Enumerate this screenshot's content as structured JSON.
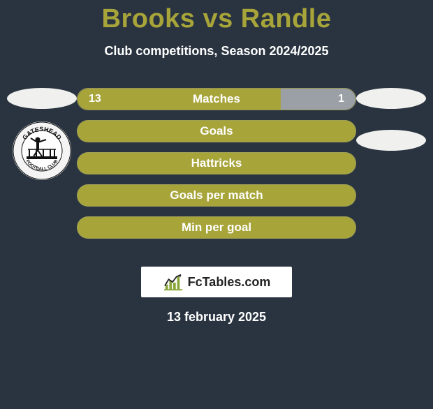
{
  "title": {
    "text": "Brooks vs Randle",
    "color": "#a7a43a"
  },
  "subtitle": "Club competitions, Season 2024/2025",
  "colors": {
    "brand": "#a7a43a",
    "neutral_dim": "#5b6168",
    "pill": "#f0f0ee",
    "bg": "#2a3440"
  },
  "leftPlayer": {
    "club": "GATESHEAD",
    "club_sub": "FOOTBALL CLUB"
  },
  "bars": [
    {
      "label": "Matches",
      "left": {
        "value": "13",
        "width_pct": 73,
        "color": "#a7a43a"
      },
      "right": {
        "value": "1",
        "width_pct": 27,
        "color": "#9aa0a6"
      }
    },
    {
      "label": "Goals",
      "full_color": "#a7a43a"
    },
    {
      "label": "Hattricks",
      "full_color": "#a7a43a"
    },
    {
      "label": "Goals per match",
      "full_color": "#a7a43a"
    },
    {
      "label": "Min per goal",
      "full_color": "#a7a43a"
    }
  ],
  "watermark": "FcTables.com",
  "date": "13 february 2025"
}
